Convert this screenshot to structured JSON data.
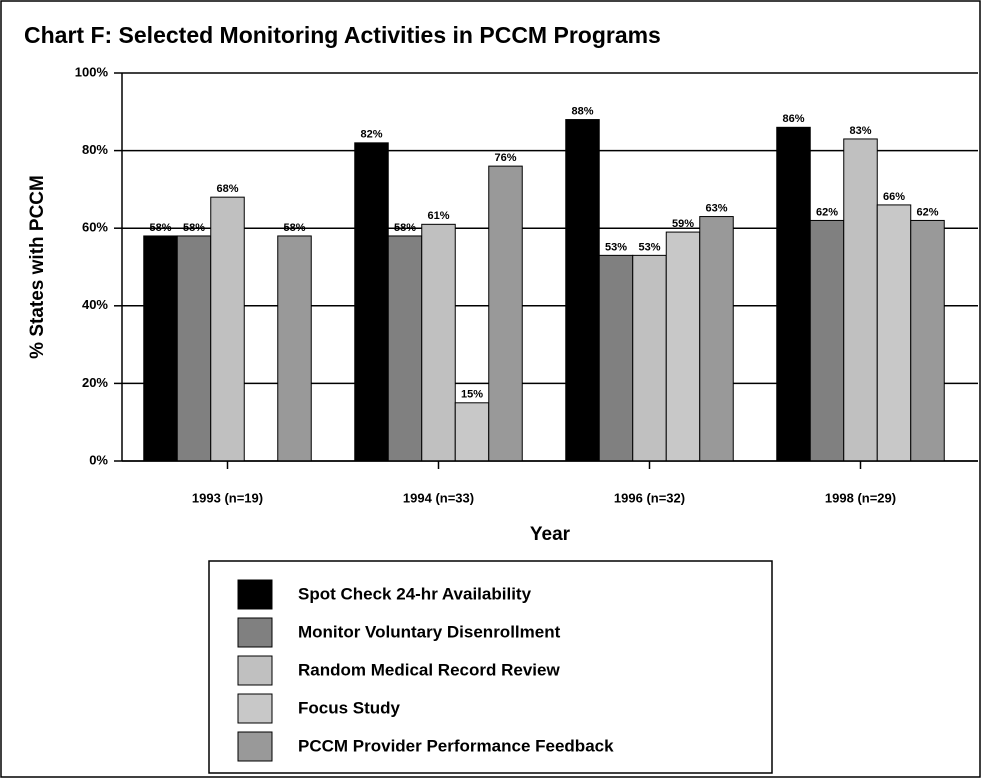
{
  "chart_data": {
    "type": "bar",
    "title": "Chart F:  Selected Monitoring Activities in PCCM Programs",
    "x_label": "Year",
    "y_label": "% States with PCCM",
    "categories": [
      "1993 (n=19)",
      "1994 (n=33)",
      "1996 (n=32)",
      "1998 (n=29)"
    ],
    "series": [
      {
        "name": "Spot Check 24-hr Availability",
        "color": "#000000",
        "values": [
          58,
          82,
          88,
          86
        ],
        "value_labels": [
          "58%",
          "82%",
          "88%",
          "86%"
        ]
      },
      {
        "name": "Monitor Voluntary Disenrollment",
        "color": "#808080",
        "values": [
          58,
          58,
          53,
          62
        ],
        "value_labels": [
          "58%",
          "58%",
          "53%",
          "62%"
        ]
      },
      {
        "name": "Random Medical Record Review",
        "color": "#c0c0c0",
        "values": [
          68,
          61,
          53,
          83
        ],
        "value_labels": [
          "68%",
          "61%",
          "53%",
          "83%"
        ]
      },
      {
        "name": "Focus Study",
        "color": "#c8c8c8",
        "values": [
          null,
          15,
          59,
          66
        ],
        "value_labels": [
          null,
          "15%",
          "59%",
          "66%"
        ]
      },
      {
        "name": "PCCM Provider Performance Feedback",
        "color": "#999999",
        "values": [
          58,
          76,
          63,
          62
        ],
        "value_labels": [
          "58%",
          "76%",
          "63%",
          "62%"
        ]
      }
    ],
    "ylim": [
      0,
      100
    ],
    "yticks": [
      {
        "value": 0,
        "label": "0%"
      },
      {
        "value": 20,
        "label": "20%"
      },
      {
        "value": 40,
        "label": "40%"
      },
      {
        "value": 60,
        "label": "60%"
      },
      {
        "value": 80,
        "label": "80%"
      },
      {
        "value": 100,
        "label": "100%"
      }
    ],
    "grid": true
  }
}
